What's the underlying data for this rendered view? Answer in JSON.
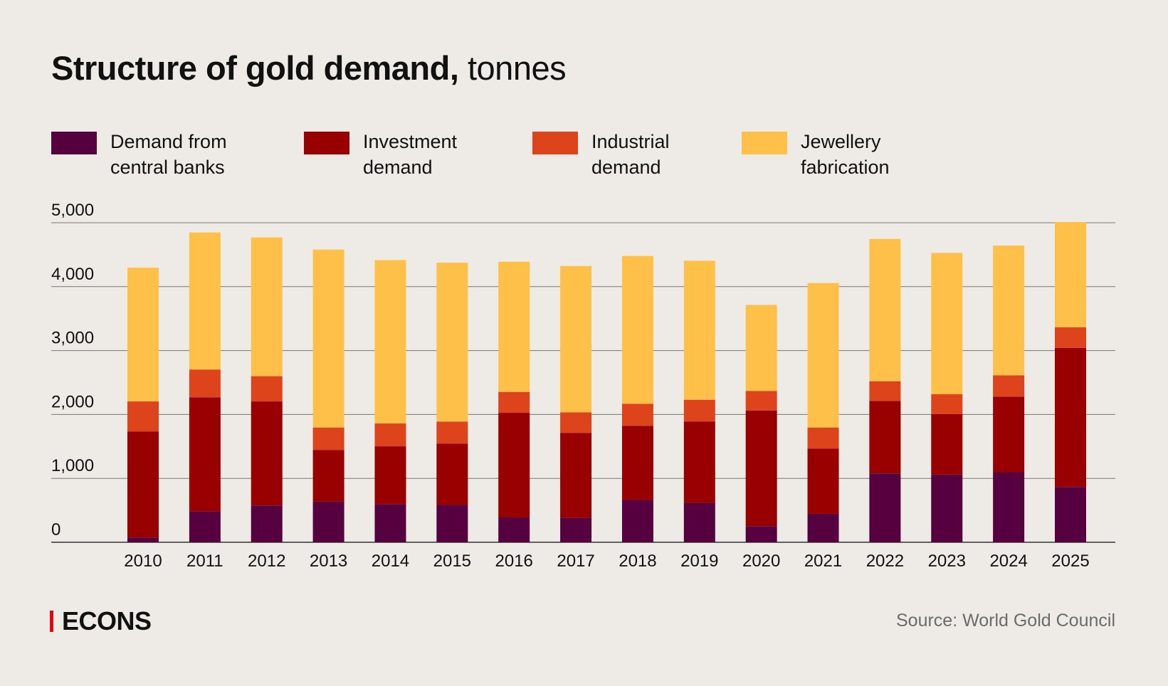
{
  "title": {
    "bold": "Structure of gold demand,",
    "unit": "tonnes"
  },
  "legend": [
    {
      "label": "Demand from\ncentral banks",
      "color": "#570040"
    },
    {
      "label": "Investment\ndemand",
      "color": "#990000"
    },
    {
      "label": "Industrial\ndemand",
      "color": "#dd441c"
    },
    {
      "label": "Jewellery\nfabrication",
      "color": "#ffc04a"
    }
  ],
  "chart_data": {
    "type": "bar",
    "stacked": true,
    "title": "Structure of gold demand, tonnes",
    "xlabel": "",
    "ylabel": "",
    "ylim": [
      0,
      5000
    ],
    "yticks": [
      "0",
      "1,000",
      "2,000",
      "3,000",
      "4,000",
      "5,000"
    ],
    "ytick_values": [
      0,
      1000,
      2000,
      3000,
      4000,
      5000
    ],
    "grid": true,
    "legend_position": "top",
    "categories": [
      "2010",
      "2011",
      "2012",
      "2013",
      "2014",
      "2015",
      "2016",
      "2017",
      "2018",
      "2019",
      "2020",
      "2021",
      "2022",
      "2023",
      "2024",
      "2025"
    ],
    "series": [
      {
        "name": "Demand from central banks",
        "color": "#570040",
        "values": [
          74,
          483,
          576,
          636,
          599,
          584,
          390,
          383,
          662,
          613,
          253,
          446,
          1078,
          1059,
          1097,
          866
        ]
      },
      {
        "name": "Investment demand",
        "color": "#990000",
        "values": [
          1658,
          1785,
          1628,
          806,
          903,
          959,
          1636,
          1327,
          1160,
          1275,
          1810,
          1019,
          1134,
          948,
          1182,
          2175
        ]
      },
      {
        "name": "Industrial demand",
        "color": "#dd441c",
        "values": [
          472,
          435,
          395,
          354,
          357,
          345,
          327,
          323,
          345,
          342,
          305,
          331,
          308,
          309,
          334,
          323
        ]
      },
      {
        "name": "Jewellery fabrication",
        "color": "#ffc04a",
        "values": [
          2093,
          2145,
          2171,
          2784,
          2557,
          2487,
          2037,
          2290,
          2313,
          2175,
          1346,
          2260,
          2227,
          2212,
          2030,
          1647
        ]
      }
    ]
  },
  "footer": {
    "brand": "ECONS",
    "brand_color": "#e30613",
    "source": "Source: World Gold Council"
  }
}
